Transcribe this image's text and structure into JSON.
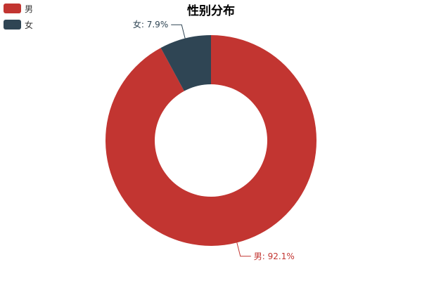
{
  "chart_data": {
    "type": "pie",
    "variant": "donut",
    "title": "性别分布",
    "categories": [
      "男",
      "女"
    ],
    "values": [
      92.1,
      7.9
    ],
    "unit": "%",
    "labels": [
      "男: 92.1%",
      "女: 7.9%"
    ],
    "colors": [
      "#c23531",
      "#2f4554"
    ],
    "legend": {
      "position": "top-left",
      "items": [
        "男",
        "女"
      ]
    }
  }
}
